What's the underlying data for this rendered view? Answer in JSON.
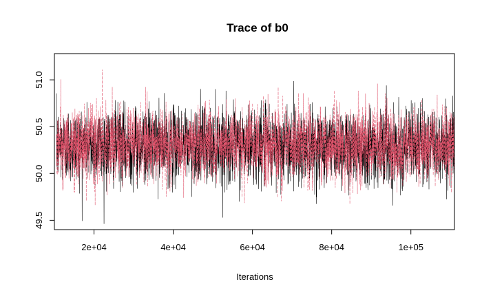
{
  "chart_data": {
    "type": "line",
    "title": "Trace of b0",
    "xlabel": "Iterations",
    "ylabel": "",
    "xlim": [
      10000,
      111000
    ],
    "ylim": [
      49.4,
      51.28
    ],
    "x_ticks": [
      20000,
      40000,
      60000,
      80000,
      100000
    ],
    "x_tick_labels": [
      "2e+04",
      "4e+04",
      "6e+04",
      "8e+04",
      "1e+05"
    ],
    "y_ticks": [
      49.5,
      50.0,
      50.5,
      51.0
    ],
    "y_tick_labels": [
      "49.5",
      "50.0",
      "50.5",
      "51.0"
    ],
    "grid": false,
    "legend": "none",
    "series": [
      {
        "color": "#000000",
        "line_style": "solid",
        "iterations": [
          10501,
          111000
        ],
        "mean": 50.3,
        "sd": 0.2,
        "min": 49.42,
        "max": 51.13
      },
      {
        "color": "#DF536B",
        "line_style": "dashed",
        "iterations": [
          10501,
          111000
        ],
        "mean": 50.3,
        "sd": 0.2,
        "min": 49.5,
        "max": 51.28
      }
    ]
  }
}
